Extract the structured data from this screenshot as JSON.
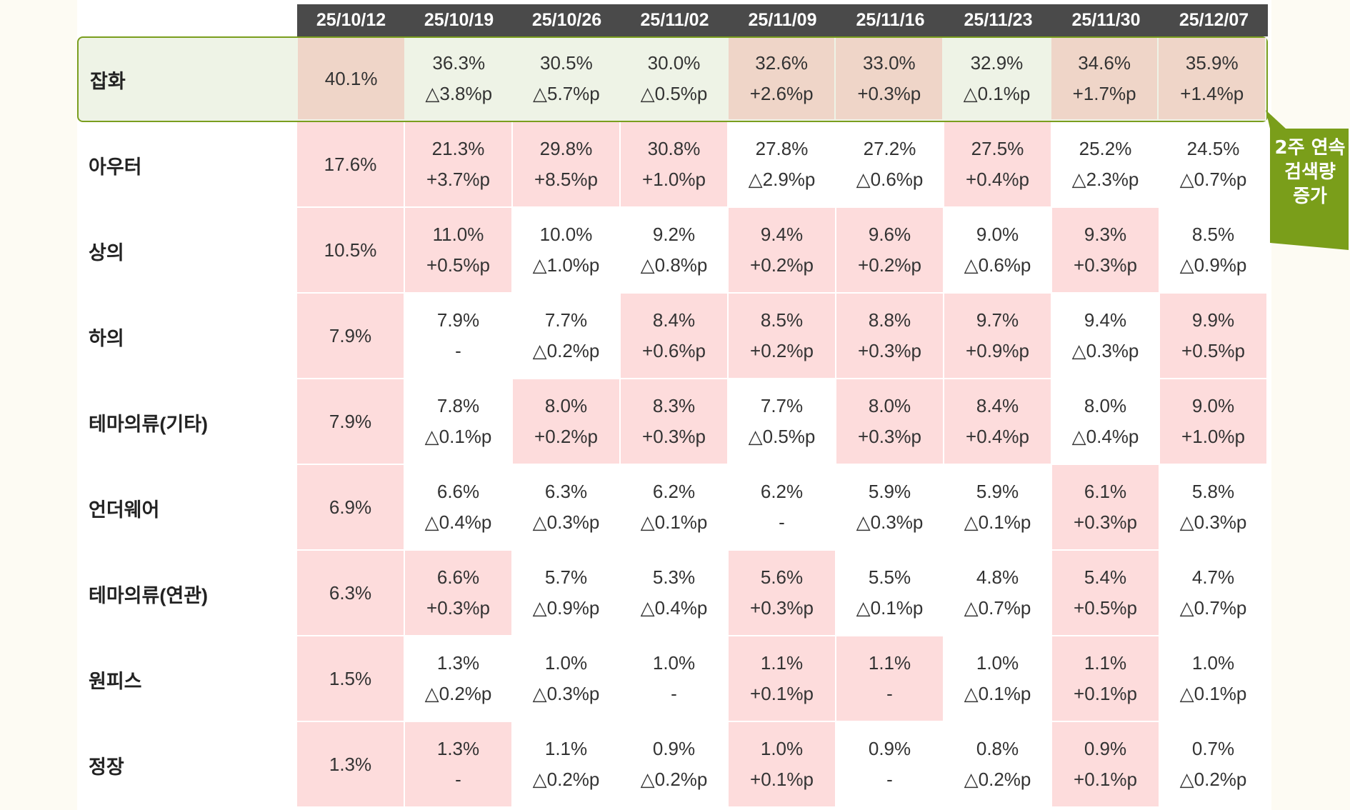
{
  "dates": [
    "25/10/12",
    "25/10/19",
    "25/10/26",
    "25/11/02",
    "25/11/09",
    "25/11/16",
    "25/11/23",
    "25/11/30",
    "25/12/07"
  ],
  "rows": [
    {
      "label": "잡화",
      "highlight": true,
      "cells": [
        {
          "v": "40.1%",
          "d": "",
          "p": 1
        },
        {
          "v": "36.3%",
          "d": "△3.8%p",
          "p": 0
        },
        {
          "v": "30.5%",
          "d": "△5.7%p",
          "p": 0
        },
        {
          "v": "30.0%",
          "d": "△0.5%p",
          "p": 0
        },
        {
          "v": "32.6%",
          "d": "+2.6%p",
          "p": 1
        },
        {
          "v": "33.0%",
          "d": "+0.3%p",
          "p": 1
        },
        {
          "v": "32.9%",
          "d": "△0.1%p",
          "p": 0
        },
        {
          "v": "34.6%",
          "d": "+1.7%p",
          "p": 1
        },
        {
          "v": "35.9%",
          "d": "+1.4%p",
          "p": 1
        }
      ]
    },
    {
      "label": "아우터",
      "cells": [
        {
          "v": "17.6%",
          "d": "",
          "p": 1
        },
        {
          "v": "21.3%",
          "d": "+3.7%p",
          "p": 1
        },
        {
          "v": "29.8%",
          "d": "+8.5%p",
          "p": 1
        },
        {
          "v": "30.8%",
          "d": "+1.0%p",
          "p": 1
        },
        {
          "v": "27.8%",
          "d": "△2.9%p",
          "p": 0
        },
        {
          "v": "27.2%",
          "d": "△0.6%p",
          "p": 0
        },
        {
          "v": "27.5%",
          "d": "+0.4%p",
          "p": 1
        },
        {
          "v": "25.2%",
          "d": "△2.3%p",
          "p": 0
        },
        {
          "v": "24.5%",
          "d": "△0.7%p",
          "p": 0
        }
      ]
    },
    {
      "label": "상의",
      "cells": [
        {
          "v": "10.5%",
          "d": "",
          "p": 1
        },
        {
          "v": "11.0%",
          "d": "+0.5%p",
          "p": 1
        },
        {
          "v": "10.0%",
          "d": "△1.0%p",
          "p": 0
        },
        {
          "v": "9.2%",
          "d": "△0.8%p",
          "p": 0
        },
        {
          "v": "9.4%",
          "d": "+0.2%p",
          "p": 1
        },
        {
          "v": "9.6%",
          "d": "+0.2%p",
          "p": 1
        },
        {
          "v": "9.0%",
          "d": "△0.6%p",
          "p": 0
        },
        {
          "v": "9.3%",
          "d": "+0.3%p",
          "p": 1
        },
        {
          "v": "8.5%",
          "d": "△0.9%p",
          "p": 0
        }
      ]
    },
    {
      "label": "하의",
      "cells": [
        {
          "v": "7.9%",
          "d": "",
          "p": 1
        },
        {
          "v": "7.9%",
          "d": "-",
          "p": 0
        },
        {
          "v": "7.7%",
          "d": "△0.2%p",
          "p": 0
        },
        {
          "v": "8.4%",
          "d": "+0.6%p",
          "p": 1
        },
        {
          "v": "8.5%",
          "d": "+0.2%p",
          "p": 1
        },
        {
          "v": "8.8%",
          "d": "+0.3%p",
          "p": 1
        },
        {
          "v": "9.7%",
          "d": "+0.9%p",
          "p": 1
        },
        {
          "v": "9.4%",
          "d": "△0.3%p",
          "p": 0
        },
        {
          "v": "9.9%",
          "d": "+0.5%p",
          "p": 1
        }
      ]
    },
    {
      "label": "테마의류(기타)",
      "cells": [
        {
          "v": "7.9%",
          "d": "",
          "p": 1
        },
        {
          "v": "7.8%",
          "d": "△0.1%p",
          "p": 0
        },
        {
          "v": "8.0%",
          "d": "+0.2%p",
          "p": 1
        },
        {
          "v": "8.3%",
          "d": "+0.3%p",
          "p": 1
        },
        {
          "v": "7.7%",
          "d": "△0.5%p",
          "p": 0
        },
        {
          "v": "8.0%",
          "d": "+0.3%p",
          "p": 1
        },
        {
          "v": "8.4%",
          "d": "+0.4%p",
          "p": 1
        },
        {
          "v": "8.0%",
          "d": "△0.4%p",
          "p": 0
        },
        {
          "v": "9.0%",
          "d": "+1.0%p",
          "p": 1
        }
      ]
    },
    {
      "label": "언더웨어",
      "cells": [
        {
          "v": "6.9%",
          "d": "",
          "p": 1
        },
        {
          "v": "6.6%",
          "d": "△0.4%p",
          "p": 0
        },
        {
          "v": "6.3%",
          "d": "△0.3%p",
          "p": 0
        },
        {
          "v": "6.2%",
          "d": "△0.1%p",
          "p": 0
        },
        {
          "v": "6.2%",
          "d": "-",
          "p": 0
        },
        {
          "v": "5.9%",
          "d": "△0.3%p",
          "p": 0
        },
        {
          "v": "5.9%",
          "d": "△0.1%p",
          "p": 0
        },
        {
          "v": "6.1%",
          "d": "+0.3%p",
          "p": 1
        },
        {
          "v": "5.8%",
          "d": "△0.3%p",
          "p": 0
        }
      ]
    },
    {
      "label": "테마의류(연관)",
      "cells": [
        {
          "v": "6.3%",
          "d": "",
          "p": 1
        },
        {
          "v": "6.6%",
          "d": "+0.3%p",
          "p": 1
        },
        {
          "v": "5.7%",
          "d": "△0.9%p",
          "p": 0
        },
        {
          "v": "5.3%",
          "d": "△0.4%p",
          "p": 0
        },
        {
          "v": "5.6%",
          "d": "+0.3%p",
          "p": 1
        },
        {
          "v": "5.5%",
          "d": "△0.1%p",
          "p": 0
        },
        {
          "v": "4.8%",
          "d": "△0.7%p",
          "p": 0
        },
        {
          "v": "5.4%",
          "d": "+0.5%p",
          "p": 1
        },
        {
          "v": "4.7%",
          "d": "△0.7%p",
          "p": 0
        }
      ]
    },
    {
      "label": "원피스",
      "cells": [
        {
          "v": "1.5%",
          "d": "",
          "p": 1
        },
        {
          "v": "1.3%",
          "d": "△0.2%p",
          "p": 0
        },
        {
          "v": "1.0%",
          "d": "△0.3%p",
          "p": 0
        },
        {
          "v": "1.0%",
          "d": "-",
          "p": 0
        },
        {
          "v": "1.1%",
          "d": "+0.1%p",
          "p": 1
        },
        {
          "v": "1.1%",
          "d": "-",
          "p": 1
        },
        {
          "v": "1.0%",
          "d": "△0.1%p",
          "p": 0
        },
        {
          "v": "1.1%",
          "d": "+0.1%p",
          "p": 1
        },
        {
          "v": "1.0%",
          "d": "△0.1%p",
          "p": 0
        }
      ]
    },
    {
      "label": "정장",
      "cells": [
        {
          "v": "1.3%",
          "d": "",
          "p": 1
        },
        {
          "v": "1.3%",
          "d": "-",
          "p": 1
        },
        {
          "v": "1.1%",
          "d": "△0.2%p",
          "p": 0
        },
        {
          "v": "0.9%",
          "d": "△0.2%p",
          "p": 0
        },
        {
          "v": "1.0%",
          "d": "+0.1%p",
          "p": 1
        },
        {
          "v": "0.9%",
          "d": "-",
          "p": 0
        },
        {
          "v": "0.8%",
          "d": "△0.2%p",
          "p": 0
        },
        {
          "v": "0.9%",
          "d": "+0.1%p",
          "p": 1
        },
        {
          "v": "0.7%",
          "d": "△0.2%p",
          "p": 0
        }
      ]
    }
  ],
  "callout": {
    "line1": "2주 연속",
    "line2": "검색량 증가",
    "color": "#7a9e1a"
  }
}
